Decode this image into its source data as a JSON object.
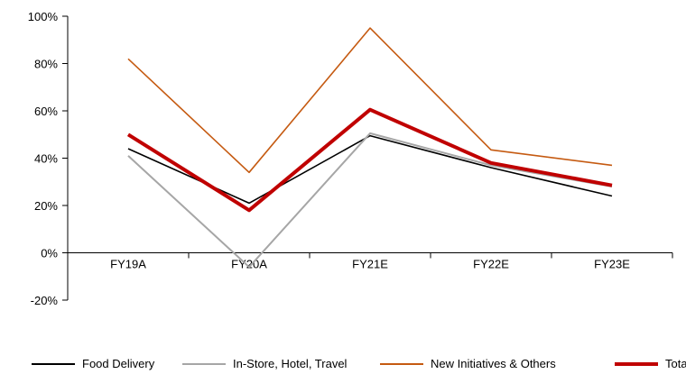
{
  "chart_data": {
    "type": "line",
    "title": "",
    "xlabel": "",
    "ylabel": "",
    "categories": [
      "FY19A",
      "FY20A",
      "FY21E",
      "FY22E",
      "FY23E"
    ],
    "ylim": [
      -20,
      100
    ],
    "yticks": [
      -20,
      0,
      20,
      40,
      60,
      80,
      100
    ],
    "ytick_labels": [
      "-20%",
      "0%",
      "20%",
      "40%",
      "60%",
      "80%",
      "100%"
    ],
    "grid": false,
    "legend_position": "bottom",
    "series": [
      {
        "name": "Food Delivery",
        "values": [
          44,
          21,
          49.5,
          36,
          24
        ],
        "color": "#000000",
        "width": "thin"
      },
      {
        "name": "In-Store, Hotel, Travel",
        "values": [
          41,
          -6,
          50.5,
          37,
          28
        ],
        "color": "#a6a6a6",
        "width": "thin"
      },
      {
        "name": "New Initiatives & Others",
        "values": [
          82,
          34,
          95,
          43.5,
          37
        ],
        "color": "#c55a11",
        "width": "thin"
      },
      {
        "name": "Total",
        "values": [
          50,
          18,
          60.5,
          38,
          28.5
        ],
        "color": "#c00000",
        "width": "thick"
      }
    ]
  }
}
